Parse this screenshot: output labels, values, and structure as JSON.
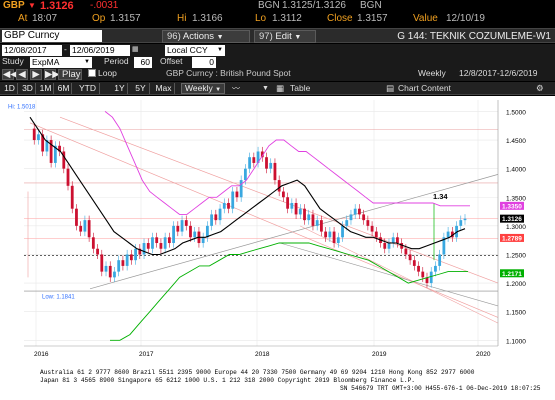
{
  "quote": {
    "ticker": "GBP",
    "last": "1.3126",
    "change": "-.0031",
    "bid_label": "BGN",
    "bid_ask": "1.3125/1.3126",
    "ask_label": "BGN",
    "time_label": "At",
    "time": "18:07",
    "open_label": "Op",
    "open": "1.3157",
    "high_label": "Hi",
    "high": "1.3166",
    "low_label": "Lo",
    "low": "1.3112",
    "close_label": "Close",
    "close": "1.3157",
    "value_label": "Value",
    "value_date": "12/10/19",
    "direction_arrow": "down-arrow"
  },
  "toolbar": {
    "security": "GBP Curncy",
    "buttons": [
      {
        "num": "96)",
        "label": "Actions"
      },
      {
        "num": "97)",
        "label": "Edit"
      }
    ],
    "page_title": "G 144: TEKNIK COZUMLEME-W1"
  },
  "range": {
    "start": "12/08/2017",
    "end": "12/06/2019",
    "currency": "Local CCY"
  },
  "study": {
    "label": "Study",
    "value": "ExpMA",
    "period_label": "Period",
    "period": "60",
    "offset_label": "Offset",
    "offset": "0"
  },
  "play": {
    "label": "Play",
    "loop_label": "Loop",
    "description": "GBP Curncy : British Pound Spot",
    "frequency_label": "Weekly",
    "date_range": "12/8/2017-12/6/2019"
  },
  "tabs": [
    "1D",
    "3D",
    "1M",
    "6M",
    "YTD",
    "1Y",
    "5Y",
    "Max"
  ],
  "tab_frequency": "Weekly",
  "tab_table": "Table",
  "tab_chart_content": "Chart Content",
  "chart_data": {
    "type": "line",
    "title": "",
    "xlabel": "",
    "ylabel": "",
    "x_ticks": [
      "2016",
      "2017",
      "2018",
      "2019",
      "2020"
    ],
    "y_ticks": [
      "1.5000",
      "1.4500",
      "1.4000",
      "1.3500",
      "1.3000",
      "1.2500",
      "1.2000",
      "1.1500",
      "1.1000"
    ],
    "ylim": [
      1.09,
      1.52
    ],
    "value_tags": [
      {
        "value": "1.3350",
        "color": "#e040e0"
      },
      {
        "value": "1.3126",
        "color": "#000000"
      },
      {
        "value": "1.2789",
        "color": "#ff4040"
      },
      {
        "value": "1.2171",
        "color": "#00b000"
      }
    ],
    "annotations": {
      "high": "Hi: 1.5018",
      "low": "Low: 1.1841",
      "target": "1.34"
    },
    "series": [
      {
        "name": "",
        "color": "#000000",
        "values": [
          1.49,
          1.47,
          1.45,
          1.44,
          1.43,
          1.41,
          1.39,
          1.37,
          1.35,
          1.33,
          1.31,
          1.29,
          1.28,
          1.27,
          1.26,
          1.255,
          1.25,
          1.25,
          1.255,
          1.26,
          1.27,
          1.275,
          1.28,
          1.28,
          1.285,
          1.29,
          1.3,
          1.31,
          1.32,
          1.33,
          1.34,
          1.35,
          1.36,
          1.37,
          1.375,
          1.38,
          1.37,
          1.35,
          1.33,
          1.32,
          1.31,
          1.3,
          1.29,
          1.285,
          1.28,
          1.28,
          1.275,
          1.27,
          1.27,
          1.265,
          1.26,
          1.26,
          1.265,
          1.27,
          1.275,
          1.28,
          1.29,
          1.295
        ]
      },
      {
        "name": "",
        "color": "#e040e0",
        "values": [
          1.5,
          1.49,
          1.47,
          1.44,
          1.41,
          1.38,
          1.36,
          1.35,
          1.34,
          1.33,
          1.32,
          1.32,
          1.33,
          1.34,
          1.35,
          1.35,
          1.36,
          1.37,
          1.37,
          1.38,
          1.4,
          1.42,
          1.44,
          1.45,
          1.45,
          1.44,
          1.43,
          1.43,
          1.42,
          1.41,
          1.4,
          1.39,
          1.38,
          1.37,
          1.36,
          1.35,
          1.34,
          1.34,
          1.34,
          1.34,
          1.34,
          1.34,
          1.34,
          1.34,
          1.34,
          1.335,
          1.335,
          1.335,
          1.335,
          1.335
        ]
      },
      {
        "name": "",
        "color": "#00b000",
        "values": [
          1.1,
          1.1,
          1.11,
          1.13,
          1.15,
          1.17,
          1.19,
          1.21,
          1.22,
          1.23,
          1.23,
          1.24,
          1.25,
          1.25,
          1.255,
          1.26,
          1.265,
          1.27,
          1.27,
          1.27,
          1.27,
          1.265,
          1.26,
          1.255,
          1.25,
          1.245,
          1.24,
          1.23,
          1.22,
          1.21,
          1.2,
          1.205,
          1.21,
          1.215,
          1.22,
          1.22,
          1.22
        ]
      }
    ]
  },
  "footer": {
    "line1": "Australia 61 2 9777 8600 Brazil 5511 2395 9000 Europe 44 20 7330 7500 Germany 49 69 9204 1210 Hong Kong 852 2977 6000",
    "line2": "Japan 81 3 4565 8900        Singapore 65 6212 1000        U.S. 1 212 318 2000        Copyright 2019 Bloomberg Finance L.P.",
    "line3": "SN 546679 TRT  GMT+3:00 H455-676-1 06-Dec-2019 18:07:25"
  }
}
